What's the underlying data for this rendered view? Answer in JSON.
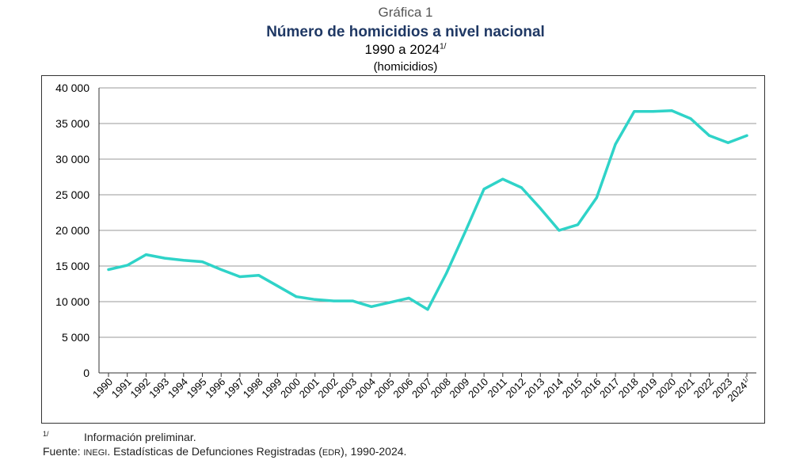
{
  "header": {
    "label": "Gráfica 1",
    "title": "Número de homicidios a nivel nacional",
    "subtitle": "1990 a 2024",
    "subtitle_mark": "1/",
    "unit": "(homicidios)"
  },
  "footer": {
    "note_mark": "1/",
    "note_text": "Información preliminar.",
    "source_label": "Fuente:",
    "source_org": "INEGI",
    "source_text": ". Estadísticas de Defunciones Registradas (",
    "source_abbr": "EDR",
    "source_end": "), 1990-2024."
  },
  "chart_data": {
    "type": "line",
    "title": "Número de homicidios a nivel nacional",
    "xlabel": "",
    "ylabel": "",
    "ylim": [
      0,
      40000
    ],
    "yticks": [
      0,
      5000,
      10000,
      15000,
      20000,
      25000,
      30000,
      35000,
      40000
    ],
    "ytick_labels": [
      "0",
      "5 000",
      "10 000",
      "15 000",
      "20 000",
      "25 000",
      "30 000",
      "35 000",
      "40 000"
    ],
    "grid": "horizontal",
    "line_color": "#2fd3c8",
    "categories": [
      "1990",
      "1991",
      "1992",
      "1993",
      "1994",
      "1995",
      "1996",
      "1997",
      "1998",
      "1999",
      "2000",
      "2001",
      "2002",
      "2003",
      "2004",
      "2005",
      "2006",
      "2007",
      "2008",
      "2009",
      "2010",
      "2011",
      "2012",
      "2013",
      "2014",
      "2015",
      "2016",
      "2017",
      "2018",
      "2019",
      "2020",
      "2021",
      "2022",
      "2023",
      "2024"
    ],
    "last_category_mark": "1/",
    "values": [
      14500,
      15100,
      16600,
      16100,
      15800,
      15600,
      14500,
      13500,
      13700,
      12200,
      10700,
      10300,
      10100,
      10100,
      9300,
      9900,
      10500,
      8900,
      14000,
      19800,
      25800,
      27200,
      26000,
      23100,
      20000,
      20800,
      24600,
      32100,
      36700,
      36700,
      36800,
      35700,
      33300,
      32300,
      33300
    ]
  }
}
